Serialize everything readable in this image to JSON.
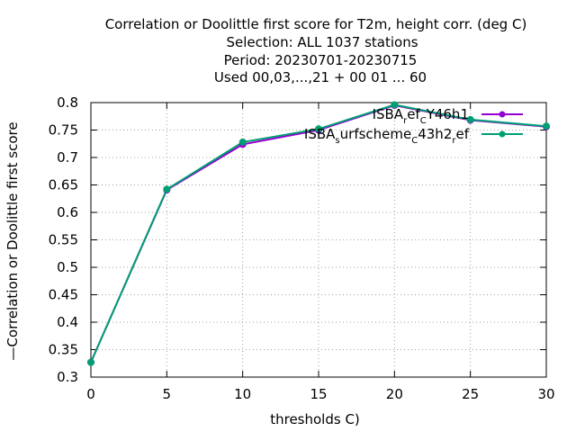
{
  "chart_data": {
    "type": "line",
    "title_lines": [
      "Correlation or Doolittle first score  for T2m, height corr. (deg C)",
      "Selection: ALL   1037 stations",
      "Period: 20230701-20230715",
      "Used  00,03,...,21  + 00 01 ... 60"
    ],
    "xlabel": "thresholds C)",
    "ylabel": "Correlation or Doolittle first score",
    "ylabel_prefix": "—",
    "xlim": [
      0,
      30
    ],
    "ylim": [
      0.3,
      0.8
    ],
    "xticks": [
      0,
      5,
      10,
      15,
      20,
      25,
      30
    ],
    "yticks": [
      0.3,
      0.35,
      0.4,
      0.45,
      0.5,
      0.55,
      0.6,
      0.65,
      0.7,
      0.75,
      0.8
    ],
    "grid": true,
    "legend_position": "top-right",
    "x": [
      0,
      5,
      10,
      15,
      20,
      25,
      30
    ],
    "series": [
      {
        "name": "ISBA_ref_CY46h1",
        "legend_parts": [
          [
            "ISBA",
            ""
          ],
          [
            "r",
            "sub"
          ],
          [
            "ef",
            ""
          ],
          [
            "C",
            "sub"
          ],
          [
            "Y46h1",
            ""
          ]
        ],
        "color": "#9400d3",
        "values": [
          0.327,
          0.641,
          0.724,
          0.75,
          0.795,
          0.768,
          0.756
        ]
      },
      {
        "name": "ISBA_surfscheme_C43h2_ref",
        "legend_parts": [
          [
            "ISBA",
            ""
          ],
          [
            "s",
            "sub"
          ],
          [
            "urfscheme",
            ""
          ],
          [
            "C",
            "sub"
          ],
          [
            "43h2",
            ""
          ],
          [
            "r",
            "sub"
          ],
          [
            "ef",
            ""
          ]
        ],
        "color": "#009e73",
        "values": [
          0.327,
          0.642,
          0.728,
          0.752,
          0.796,
          0.769,
          0.757
        ]
      }
    ]
  }
}
